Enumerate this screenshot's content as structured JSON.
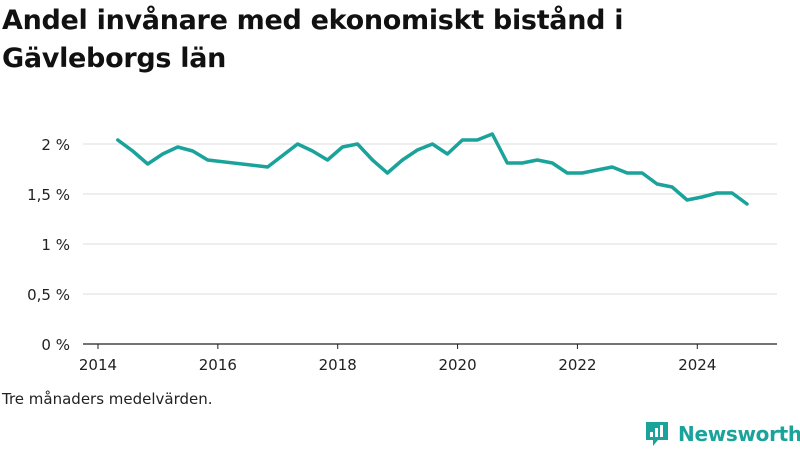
{
  "title": "Andel invånare med ekonomiskt bistånd i Gävleborgs län",
  "note": "Tre månaders medelvärden.",
  "brand": {
    "name": "Newsworthy",
    "color": "#1aa39a",
    "icon": "bar-chart-logo-icon"
  },
  "chart_data": {
    "type": "line",
    "title": "Andel invånare med ekonomiskt bistånd i Gävleborgs län",
    "xlabel": "",
    "ylabel": "",
    "xlim": [
      2013.75,
      2025.33
    ],
    "ylim": [
      0,
      2.2
    ],
    "grid": true,
    "x_ticks": [
      2014,
      2016,
      2018,
      2020,
      2022,
      2024
    ],
    "x_tick_labels": [
      "2014",
      "2016",
      "2018",
      "2020",
      "2022",
      "2024"
    ],
    "y_ticks": [
      0,
      0.5,
      1,
      1.5,
      2
    ],
    "y_tick_labels": [
      "0 %",
      "0,5 %",
      "1 %",
      "1,5 %",
      "2 %"
    ],
    "line_color": "#1aa39a",
    "series": [
      {
        "x": [
          2014.33,
          2014.58,
          2014.83,
          2015.08,
          2015.33,
          2015.58,
          2015.83,
          2016.83,
          2017.33,
          2017.58,
          2017.83,
          2018.08,
          2018.33,
          2018.58,
          2018.83,
          2019.08,
          2019.33,
          2019.58,
          2019.83,
          2020.08,
          2020.33,
          2020.58,
          2020.83,
          2021.08,
          2021.33,
          2021.58,
          2021.83,
          2022.08,
          2022.58,
          2022.83,
          2023.08,
          2023.33,
          2023.58,
          2023.83,
          2024.08,
          2024.33,
          2024.58,
          2024.83
        ],
        "y": [
          2.04,
          1.93,
          1.8,
          1.9,
          1.97,
          1.93,
          1.84,
          1.77,
          2.0,
          1.93,
          1.84,
          1.97,
          2.0,
          1.84,
          1.71,
          1.84,
          1.94,
          2.0,
          1.9,
          2.04,
          2.04,
          2.1,
          1.81,
          1.81,
          1.84,
          1.81,
          1.71,
          1.71,
          1.77,
          1.71,
          1.71,
          1.6,
          1.57,
          1.44,
          1.47,
          1.51,
          1.51,
          1.4
        ]
      }
    ]
  }
}
